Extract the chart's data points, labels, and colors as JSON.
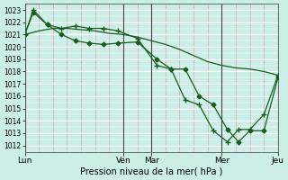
{
  "xlabel": "Pression niveau de la mer( hPa )",
  "ylim": [
    1011.5,
    1023.5
  ],
  "yticks": [
    1012,
    1013,
    1014,
    1015,
    1016,
    1017,
    1018,
    1019,
    1020,
    1021,
    1022,
    1023
  ],
  "xtick_labels": [
    "Lun",
    "Ven",
    "Mar",
    "Mer",
    "Jeu"
  ],
  "xtick_positions": [
    0,
    35,
    45,
    70,
    90
  ],
  "bg_color": "#cceee8",
  "line_color": "#1a5c1a",
  "grid_color_v": "#c8a0a0",
  "grid_color_h": "#ffffff",
  "vline_x": [
    0,
    35,
    45,
    70,
    90
  ],
  "line_smooth_x": [
    0,
    5,
    10,
    15,
    20,
    25,
    30,
    35,
    40,
    45,
    50,
    55,
    60,
    65,
    70,
    75,
    80,
    85,
    90
  ],
  "line_smooth_y": [
    1021,
    1021.3,
    1021.5,
    1021.5,
    1021.4,
    1021.3,
    1021.1,
    1021.0,
    1020.8,
    1020.5,
    1020.2,
    1019.8,
    1019.3,
    1018.8,
    1018.5,
    1018.3,
    1018.2,
    1018.0,
    1017.7
  ],
  "line_diamond_x": [
    0,
    3,
    8,
    13,
    18,
    23,
    28,
    33,
    40,
    47,
    52,
    57,
    62,
    67,
    72,
    76,
    80,
    85,
    90
  ],
  "line_diamond_y": [
    1021,
    1022.8,
    1021.8,
    1021.0,
    1020.5,
    1020.3,
    1020.2,
    1020.3,
    1020.4,
    1019.0,
    1018.2,
    1018.2,
    1016.0,
    1015.3,
    1013.3,
    1012.3,
    1013.2,
    1013.2,
    1017.5
  ],
  "line_plus_x": [
    0,
    3,
    8,
    13,
    18,
    23,
    28,
    33,
    40,
    47,
    52,
    57,
    62,
    67,
    72,
    76,
    80,
    85,
    90
  ],
  "line_plus_y": [
    1021,
    1023,
    1021.8,
    1021.5,
    1021.7,
    1021.5,
    1021.5,
    1021.3,
    1020.7,
    1018.5,
    1018.2,
    1015.7,
    1015.3,
    1013.2,
    1012.3,
    1013.3,
    1013.3,
    1014.5,
    1017.7
  ],
  "xlim": [
    0,
    90
  ],
  "hgrid_every": 1,
  "vgrid_every": 5,
  "figsize": [
    3.2,
    2.0
  ],
  "dpi": 100
}
